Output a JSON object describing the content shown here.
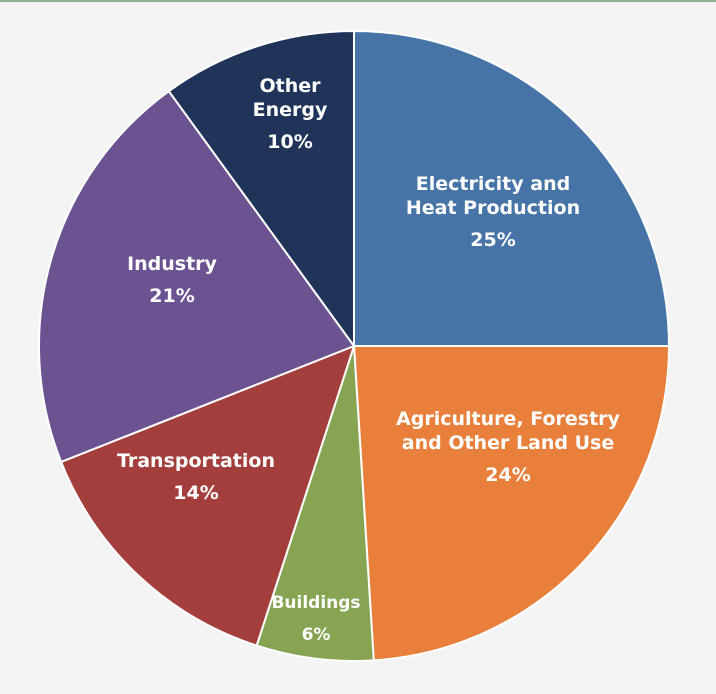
{
  "chart_data": {
    "type": "pie",
    "title": "",
    "start_angle_deg": 0,
    "direction": "clockwise",
    "slices": [
      {
        "label": [
          "Electricity and",
          "Heat Production"
        ],
        "value": 25,
        "percent_label": "25%",
        "color": "#4674a6"
      },
      {
        "label": [
          "Agriculture, Forestry",
          "and Other Land Use"
        ],
        "value": 24,
        "percent_label": "24%",
        "color": "#e8803b"
      },
      {
        "label": [
          "Buildings"
        ],
        "value": 6,
        "percent_label": "6%",
        "color": "#86a452"
      },
      {
        "label": [
          "Transportation"
        ],
        "value": 14,
        "percent_label": "14%",
        "color": "#a43e3c"
      },
      {
        "label": [
          "Industry"
        ],
        "value": 21,
        "percent_label": "21%",
        "color": "#6b5290"
      },
      {
        "label": [
          "Other",
          "Energy"
        ],
        "value": 10,
        "percent_label": "10%",
        "color": "#20345a"
      }
    ]
  }
}
